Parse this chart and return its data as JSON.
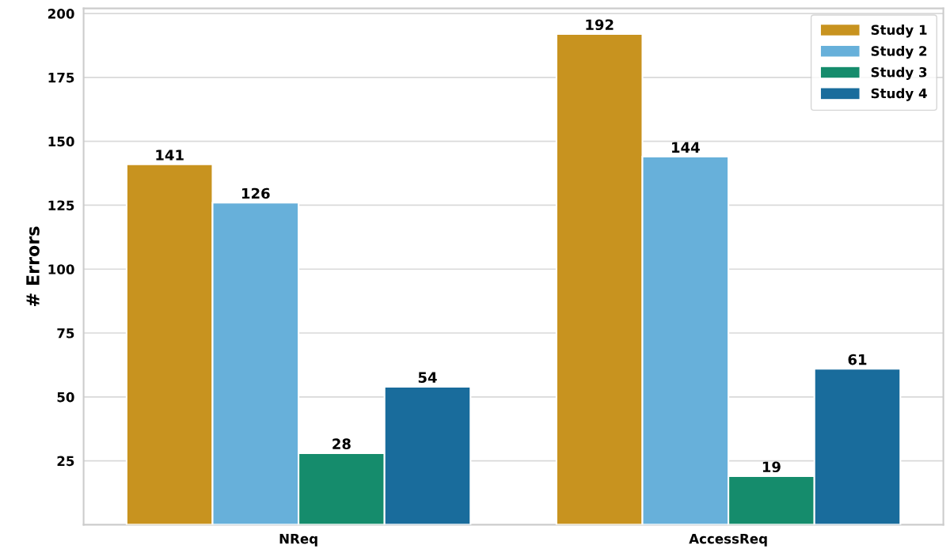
{
  "chart_data": {
    "type": "bar",
    "ylabel": "# Errors",
    "categories": [
      "NReq",
      "AccessReq"
    ],
    "series": [
      {
        "name": "Study 1",
        "color": "#c8931f",
        "values": [
          141,
          192
        ]
      },
      {
        "name": "Study 2",
        "color": "#67b0da",
        "values": [
          126,
          144
        ]
      },
      {
        "name": "Study 3",
        "color": "#158c6c",
        "values": [
          28,
          19
        ]
      },
      {
        "name": "Study 4",
        "color": "#196c9c",
        "values": [
          54,
          61
        ]
      }
    ],
    "ylim": [
      0,
      202
    ],
    "yticks": [
      25,
      50,
      75,
      100,
      125,
      150,
      175,
      200
    ],
    "grid": "y",
    "legend": "top right",
    "data_labels": true
  }
}
